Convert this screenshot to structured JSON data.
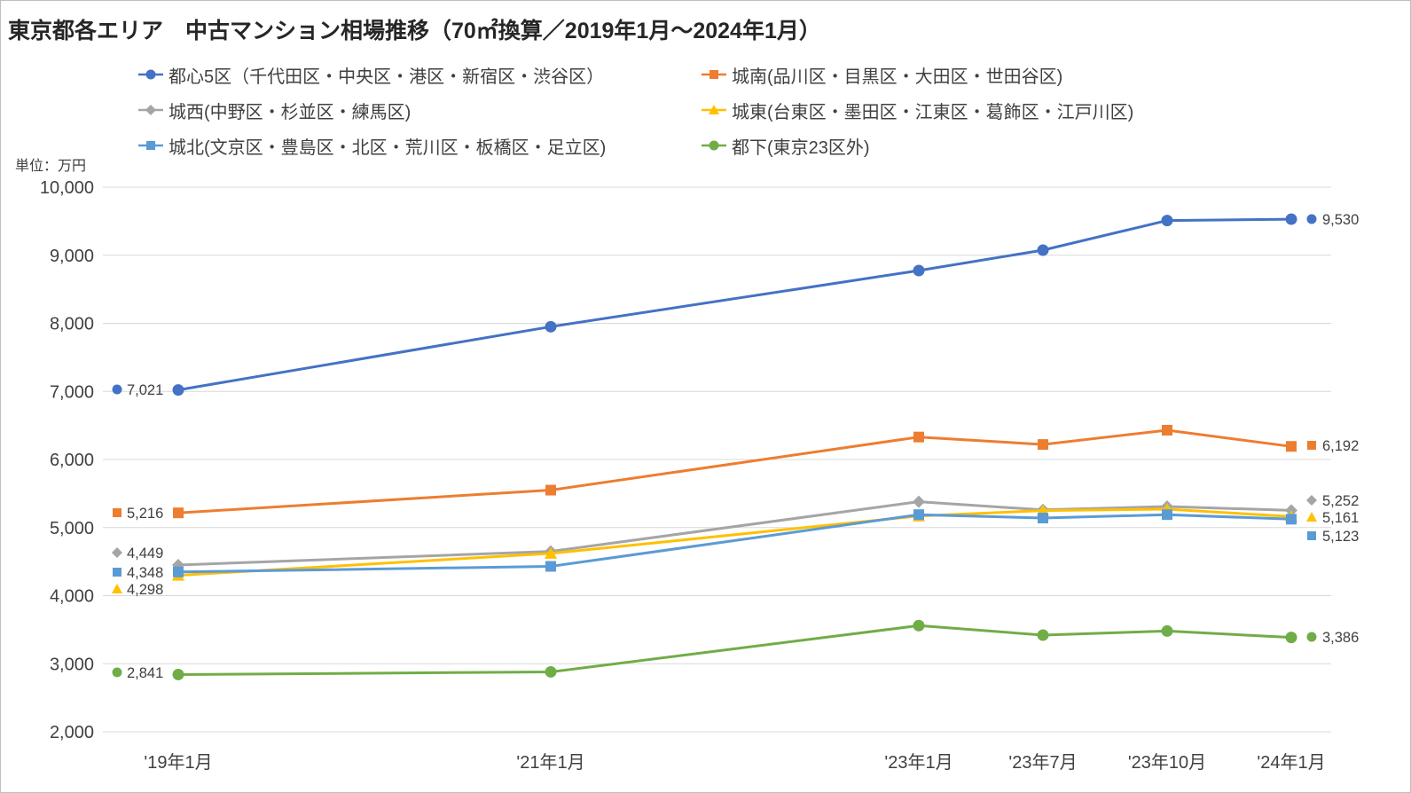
{
  "title": "東京都各エリア　中古マンション相場推移（70㎡換算／2019年1月～2024年1月）",
  "unit_label": "単位：万円",
  "chart_data": {
    "type": "line",
    "categories": [
      "'19年1月",
      "'21年1月",
      "'23年1月",
      "'23年7月",
      "'23年10月",
      "'24年1月"
    ],
    "ylim": [
      2000,
      10000
    ],
    "ytick_step": 1000,
    "yticks": [
      "10,000",
      "9,000",
      "8,000",
      "7,000",
      "6,000",
      "5,000",
      "4,000",
      "3,000",
      "2,000"
    ],
    "grid": true,
    "legend_position": "top",
    "series": [
      {
        "name": "都心5区（千代田区・中央区・港区・新宿区・渋谷区）",
        "color": "#4472C4",
        "marker": "circle",
        "values": [
          7021,
          7950,
          8775,
          9075,
          9510,
          9530
        ],
        "first_label": "7,021",
        "last_label": "9,530"
      },
      {
        "name": "城南(品川区・目黒区・大田区・世田谷区)",
        "color": "#ED7D31",
        "marker": "square",
        "values": [
          5216,
          5550,
          6330,
          6220,
          6430,
          6192
        ],
        "first_label": "5,216",
        "last_label": "6,192"
      },
      {
        "name": "城西(中野区・杉並区・練馬区)",
        "color": "#A5A5A5",
        "marker": "diamond",
        "values": [
          4449,
          4650,
          5380,
          5260,
          5310,
          5252
        ],
        "first_label": "4,449",
        "last_label": "5,252"
      },
      {
        "name": "城東(台東区・墨田区・江東区・葛飾区・江戸川区)",
        "color": "#FFC000",
        "marker": "triangle",
        "values": [
          4298,
          4620,
          5170,
          5250,
          5270,
          5161
        ],
        "first_label": "4,298",
        "last_label": "5,161"
      },
      {
        "name": "城北(文京区・豊島区・北区・荒川区・板橋区・足立区)",
        "color": "#5B9BD5",
        "marker": "square",
        "values": [
          4348,
          4430,
          5190,
          5140,
          5190,
          5123
        ],
        "first_label": "4,348",
        "last_label": "5,123"
      },
      {
        "name": "都下(東京23区外)",
        "color": "#70AD47",
        "marker": "circle",
        "values": [
          2841,
          2880,
          3560,
          3420,
          3480,
          3386
        ],
        "first_label": "2,841",
        "last_label": "3,386"
      }
    ]
  }
}
